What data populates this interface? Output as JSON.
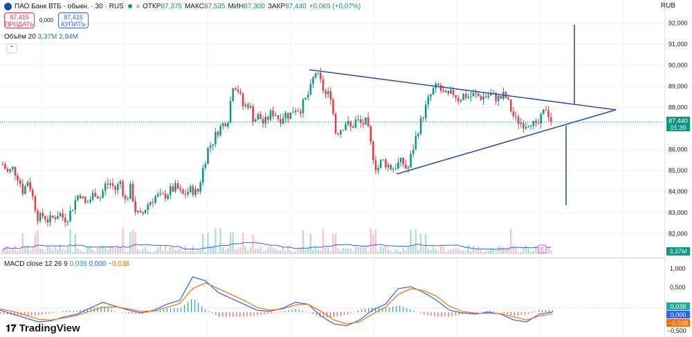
{
  "header": {
    "title": "ПАО Банк ВТБ - обыкн. · 30 · RUS",
    "open_label": "ОТКР",
    "open_value": "87,375",
    "high_label": "МАКС",
    "high_value": "87,535",
    "low_label": "МИН",
    "low_value": "87,300",
    "close_label": "ЗАКР",
    "close_value": "87,440",
    "change": "+0,065 (+0,07%)",
    "currency": "RUB"
  },
  "trade": {
    "sell_price": "87,415",
    "sell_label": "ПРОДАТЬ",
    "spread": "0,000",
    "buy_price": "87,415",
    "buy_label": "КУПИТЬ"
  },
  "volume_legend": {
    "label": "Объём 20",
    "value1": "3,37M",
    "value2": "2,94M"
  },
  "macd_legend": {
    "label": "MACD close 12 26 9",
    "hist": "0,038",
    "macd": "0,000",
    "signal": "−0,038"
  },
  "price_axis": {
    "ticks": [
      "92,000",
      "91,000",
      "90,000",
      "89,000",
      "88,000",
      "86,000",
      "85,000",
      "84,000",
      "83,000",
      "82,000"
    ],
    "current_price": "87,440",
    "countdown": "01:39",
    "volume_badge": "3,37M"
  },
  "macd_axis": {
    "ticks": [
      "1,000",
      "0,500",
      "−0,500"
    ],
    "hist_badge": "0,038",
    "macd_badge": "0,000",
    "signal_badge": "−0,038"
  },
  "branding": "TradingView",
  "colors": {
    "up": "#089981",
    "down": "#f23645",
    "drawing": "#2e4fb3",
    "volume_ma": "#2962ff",
    "macd_line": "#2962ff",
    "signal_line": "#ff6d00"
  },
  "chart_data": [
    {
      "type": "candlestick",
      "title": "ПАО Банк ВТБ - обыкн. · 30 · RUS",
      "ylim": [
        81.3,
        92.6
      ],
      "price_path": [
        85.3,
        84.9,
        85.1,
        84.7,
        84.0,
        84.6,
        83.6,
        82.7,
        82.9,
        82.6,
        82.8,
        83.0,
        82.7,
        82.9,
        83.5,
        84.0,
        83.4,
        83.6,
        84.0,
        83.7,
        84.3,
        84.4,
        84.1,
        84.5,
        83.5,
        84.2,
        83.0,
        82.8,
        83.3,
        83.6,
        83.8,
        83.7,
        83.9,
        84.1,
        84.2,
        83.8,
        84.0,
        84.1,
        83.9,
        85.0,
        86.0,
        86.4,
        86.9,
        87.2,
        87.5,
        89.2,
        88.8,
        88.0,
        88.2,
        87.4,
        87.6,
        87.2,
        87.6,
        87.8,
        87.4,
        87.7,
        87.6,
        88.0,
        87.9,
        88.3,
        88.8,
        89.7,
        89.2,
        88.6,
        88.6,
        86.8,
        87.0,
        87.3,
        87.0,
        87.4,
        87.2,
        87.3,
        86.0,
        85.0,
        85.5,
        85.3,
        85.1,
        85.3,
        85.4,
        85.0,
        86.0,
        86.9,
        87.6,
        88.3,
        88.8,
        89.0,
        88.6,
        88.5,
        88.7,
        88.4,
        88.6,
        88.5,
        88.6,
        88.5,
        88.5,
        88.6,
        88.5,
        88.4,
        88.6,
        88.0,
        87.4,
        87.3,
        87.2,
        87.4,
        87.0,
        87.4,
        88.0,
        87.4
      ],
      "volume_ma_note": "Объём 20"
    },
    {
      "type": "line",
      "title": "MACD close 12 26 9",
      "series": [
        {
          "name": "MACD",
          "values": [
            0.05,
            -0.05,
            -0.15,
            -0.25,
            -0.22,
            -0.12,
            -0.05,
            0.1,
            0.25,
            0.15,
            0.05,
            -0.02,
            0.05,
            0.2,
            0.3,
            0.9,
            0.8,
            0.5,
            0.35,
            0.2,
            0.05,
            0.02,
            0.1,
            0.25,
            0.2,
            -0.1,
            -0.3,
            -0.35,
            -0.2,
            0.05,
            0.2,
            0.6,
            0.65,
            0.5,
            0.3,
            0.05,
            -0.02,
            -0.05,
            0.0,
            -0.05,
            -0.2,
            -0.25,
            -0.05,
            0.0
          ]
        },
        {
          "name": "Signal",
          "values": [
            0.08,
            0.02,
            -0.08,
            -0.18,
            -0.2,
            -0.15,
            -0.08,
            0.02,
            0.12,
            0.14,
            0.08,
            0.02,
            0.03,
            0.12,
            0.22,
            0.6,
            0.75,
            0.6,
            0.45,
            0.3,
            0.12,
            0.05,
            0.08,
            0.18,
            0.2,
            0.02,
            -0.2,
            -0.3,
            -0.25,
            -0.05,
            0.12,
            0.45,
            0.6,
            0.55,
            0.4,
            0.15,
            0.02,
            -0.03,
            -0.03,
            -0.04,
            -0.12,
            -0.2,
            -0.1,
            -0.04
          ]
        }
      ],
      "ylim": [
        -0.6,
        1.25
      ]
    }
  ]
}
